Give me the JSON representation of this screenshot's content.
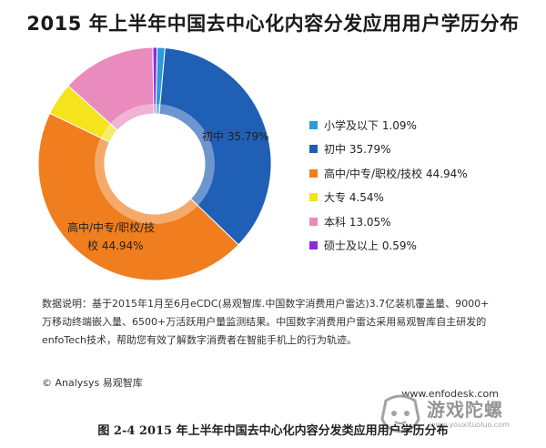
{
  "title": "2015 年上半年中国去中心化内容分发应用用户学历分布",
  "chart_data": {
    "type": "pie",
    "categories": [
      "小学及以下",
      "初中",
      "高中/中专/职校/技校",
      "大专",
      "本科",
      "硕士及以上"
    ],
    "values": [
      1.09,
      35.79,
      44.94,
      4.54,
      13.05,
      0.59
    ],
    "unit": "%",
    "colors": [
      "#2e9bd6",
      "#1f5fb5",
      "#f07d1e",
      "#f5e31c",
      "#e98bbd",
      "#8a2be2"
    ],
    "legend": [
      "小学及以下 1.09%",
      "初中 35.79%",
      "高中/中专/职校/技校 44.94%",
      "大专 4.54%",
      "本科 13.05%",
      "硕士及以上 0.59%"
    ],
    "slice_labels": {
      "junior": "初中 35.79%",
      "senior_line1": "高中/中专/职校/技",
      "senior_line2": "校 44.94%"
    },
    "legend_position": "right",
    "donut": true
  },
  "note": {
    "line1": "数据说明：基于2015年1月至6月eCDC(易观智库.中国数字消费用户雷达)3.7亿装机覆盖量、9000+",
    "line2": "万移动终端嵌入量、6500+万活跃用户量监测结果。中国数字消费用户雷达采用易观智库自主研发的",
    "line3": "enfoTech技术，帮助您有效了解数字消费者在智能手机上的行为轨迹。"
  },
  "copyright": "© Analysys 易观智库",
  "site": "www.enfodesk.com",
  "caption": "图  2-4 2015 年上半年中国去中心化内容分发类应用用户学历分布",
  "watermark": {
    "text": "游戏陀螺",
    "url": "www.youxituoluo.com"
  }
}
